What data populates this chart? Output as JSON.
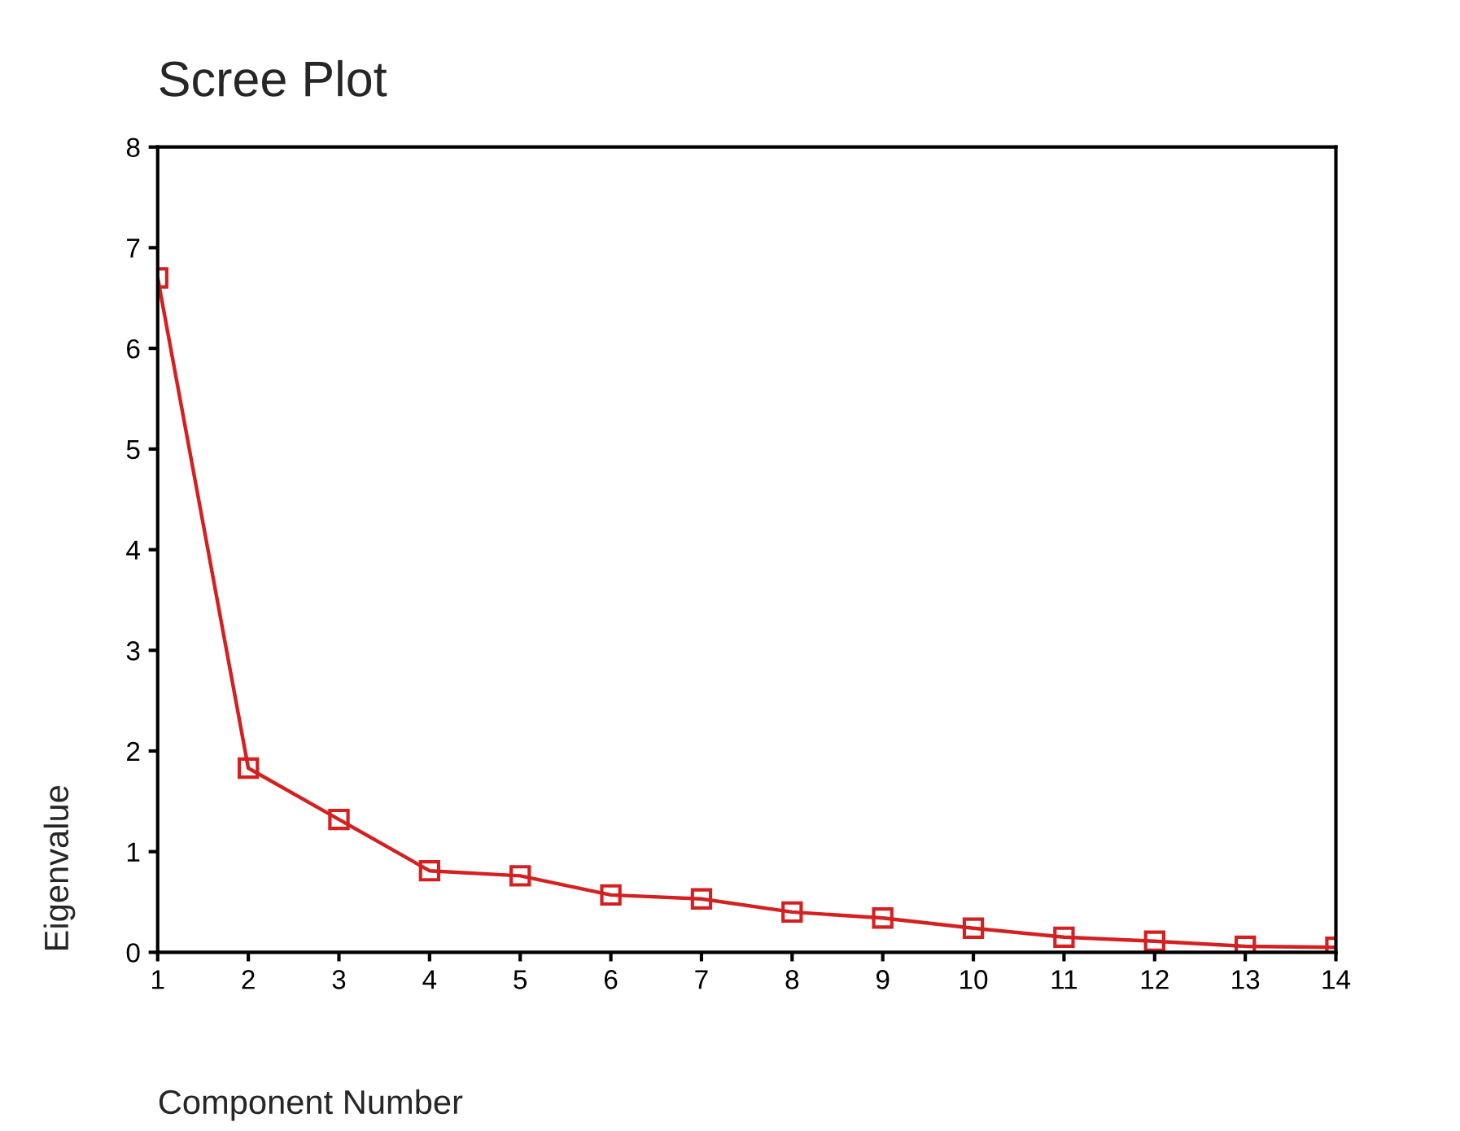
{
  "chart_data": {
    "type": "line",
    "title": "Scree Plot",
    "xlabel": "Component Number",
    "ylabel": "Eigenvalue",
    "x": [
      1,
      2,
      3,
      4,
      5,
      6,
      7,
      8,
      9,
      10,
      11,
      12,
      13,
      14
    ],
    "series": [
      {
        "color": "#d42020",
        "values": [
          6.7,
          1.83,
          1.32,
          0.81,
          0.76,
          0.57,
          0.53,
          0.4,
          0.34,
          0.24,
          0.15,
          0.11,
          0.06,
          0.05
        ]
      }
    ],
    "xlim": [
      1,
      14
    ],
    "xticks": [
      1,
      2,
      3,
      4,
      5,
      6,
      7,
      8,
      9,
      10,
      11,
      12,
      13,
      14
    ],
    "ylim": [
      0,
      8
    ],
    "yticks": [
      0,
      1,
      2,
      3,
      4,
      5,
      6,
      7,
      8
    ],
    "marker": "square",
    "line_style": "solid",
    "grid": false,
    "legend": false
  }
}
